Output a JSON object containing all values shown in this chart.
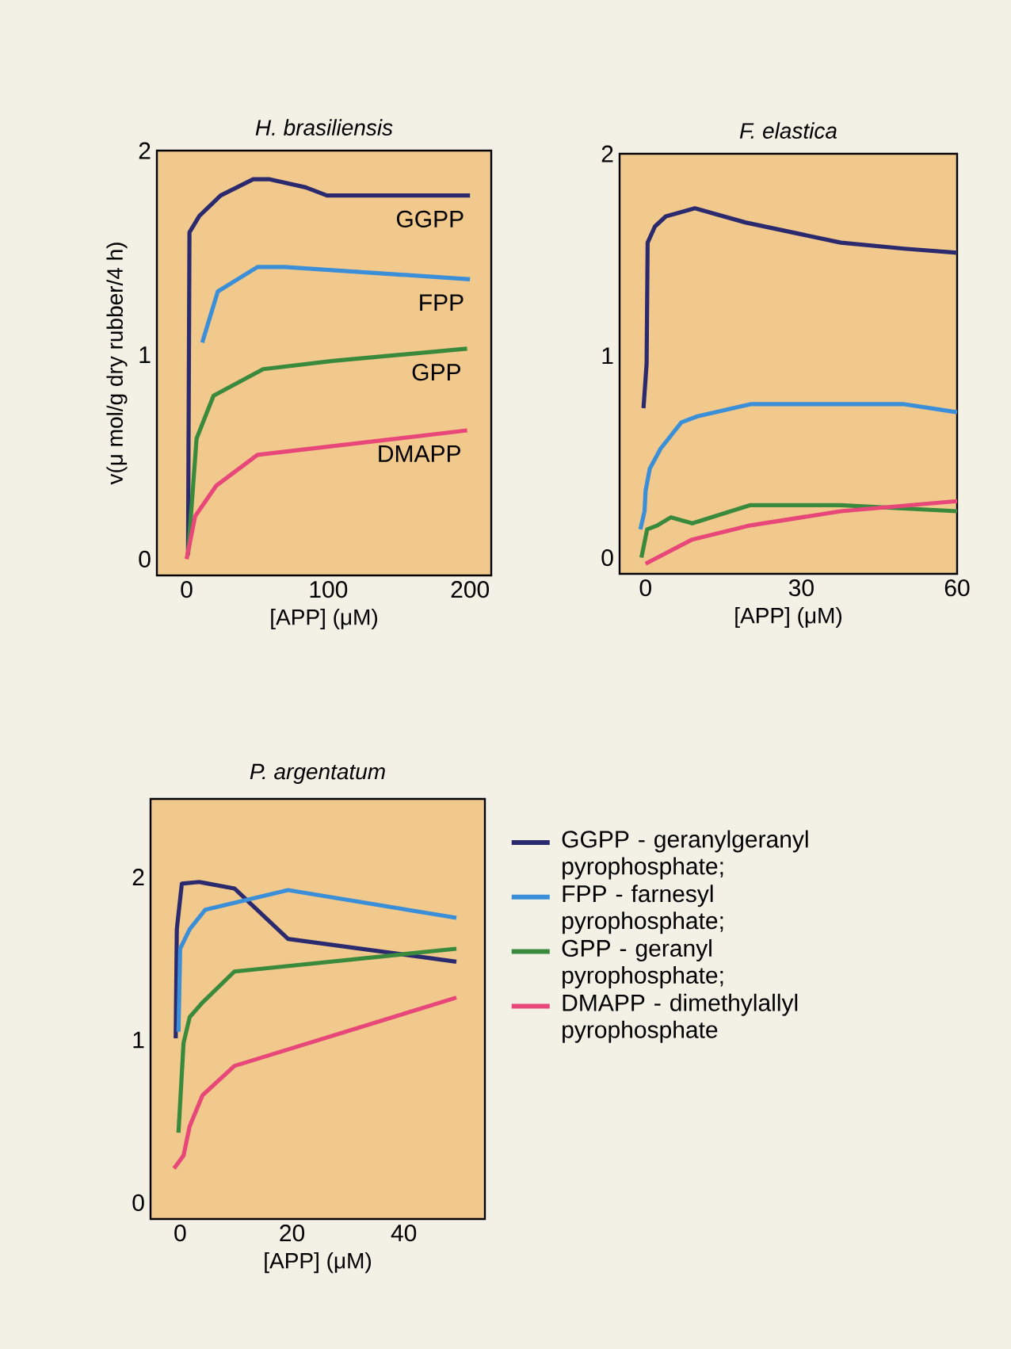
{
  "chart_data": [
    {
      "type": "line",
      "title": "H. brasiliensis",
      "xlabel": "[APP] (μM)",
      "ylabel": "v(μ mol/g dry rubber/4 h)",
      "xlim": [
        -21,
        215
      ],
      "ylim": [
        -0.08,
        2
      ],
      "xticks": [
        0,
        100,
        200
      ],
      "yticks": [
        0,
        1,
        2
      ],
      "legend": false,
      "series": [
        {
          "name": "GGPP",
          "color": "#2b2a6e",
          "x": [
            1,
            2,
            9,
            24,
            47,
            58,
            84,
            99,
            200
          ],
          "values": [
            0.02,
            1.6,
            1.68,
            1.78,
            1.86,
            1.86,
            1.82,
            1.78,
            1.78
          ]
        },
        {
          "name": "FPP",
          "color": "#3a8fd8",
          "x": [
            11,
            22,
            50,
            69,
            200
          ],
          "values": [
            1.06,
            1.31,
            1.43,
            1.43,
            1.37
          ]
        },
        {
          "name": "GPP",
          "color": "#3a8a3e",
          "x": [
            1,
            7,
            19,
            54,
            103,
            198
          ],
          "values": [
            0.02,
            0.59,
            0.8,
            0.93,
            0.97,
            1.03
          ]
        },
        {
          "name": "DMAPP",
          "color": "#e8477a",
          "x": [
            0,
            6,
            21,
            50,
            198
          ],
          "values": [
            0,
            0.21,
            0.36,
            0.51,
            0.63
          ]
        }
      ]
    },
    {
      "type": "line",
      "title": "F. elastica",
      "xlabel": "[APP] (μM)",
      "xlim": [
        -5,
        60
      ],
      "ylim": [
        -0.08,
        2
      ],
      "xticks": [
        0,
        30,
        60
      ],
      "yticks": [
        0,
        1,
        2
      ],
      "legend": false,
      "series": [
        {
          "color": "#2b2a6e",
          "x": [
            -0.4,
            0.2,
            0.4,
            1.8,
            3.9,
            9.5,
            19.2,
            37.6,
            49.8,
            60
          ],
          "values": [
            0.74,
            0.96,
            1.56,
            1.64,
            1.69,
            1.73,
            1.66,
            1.56,
            1.53,
            1.51
          ]
        },
        {
          "color": "#3a8fd8",
          "x": [
            -1,
            -0.2,
            0,
            0.8,
            2.9,
            6.9,
            10,
            20.2,
            49.8,
            60
          ],
          "values": [
            0.14,
            0.23,
            0.33,
            0.44,
            0.54,
            0.67,
            0.7,
            0.76,
            0.76,
            0.72
          ]
        },
        {
          "color": "#3a8a3e",
          "x": [
            -0.8,
            0.3,
            2.3,
            4.9,
            9,
            20.2,
            37.6,
            60
          ],
          "values": [
            0,
            0.14,
            0.16,
            0.2,
            0.17,
            0.26,
            0.26,
            0.23
          ]
        },
        {
          "color": "#e8477a",
          "x": [
            0,
            9,
            20.2,
            37.6,
            60
          ],
          "values": [
            -0.03,
            0.09,
            0.16,
            0.23,
            0.28
          ]
        }
      ]
    },
    {
      "type": "line",
      "title": "P. argentatum",
      "xlabel": "[APP] (μM)",
      "xlim": [
        -5.3,
        54.5
      ],
      "ylim": [
        -0.1,
        2.48
      ],
      "xticks": [
        0,
        20,
        40
      ],
      "yticks": [
        0,
        1,
        2
      ],
      "legend": "right",
      "series": [
        {
          "name": "GGPP - geranylgeranyl pyrophosphate;",
          "color": "#2b2a6e",
          "x": [
            -0.8,
            -0.6,
            0.3,
            3.4,
            9.7,
            19.3,
            49.4
          ],
          "values": [
            1.01,
            1.68,
            1.96,
            1.97,
            1.93,
            1.62,
            1.48
          ]
        },
        {
          "name": "FPP - farnesyl pyrophosphate;",
          "color": "#3a8fd8",
          "x": [
            -0.3,
            0,
            1.7,
            4.5,
            19.3,
            49.4
          ],
          "values": [
            1.05,
            1.56,
            1.68,
            1.8,
            1.92,
            1.75
          ]
        },
        {
          "name": "GPP - geranyl pyrophosphate;",
          "color": "#3a8a3e",
          "x": [
            -0.3,
            0.6,
            1.7,
            4,
            9.7,
            49.4
          ],
          "values": [
            0.43,
            0.98,
            1.14,
            1.23,
            1.42,
            1.56
          ]
        },
        {
          "name": "DMAPP - dimethylallyl pyrophosphate",
          "color": "#e8477a",
          "x": [
            -1.1,
            0.6,
            1.7,
            4,
            9.7,
            49.4
          ],
          "values": [
            0.21,
            0.29,
            0.47,
            0.66,
            0.84,
            1.26
          ]
        }
      ]
    }
  ]
}
